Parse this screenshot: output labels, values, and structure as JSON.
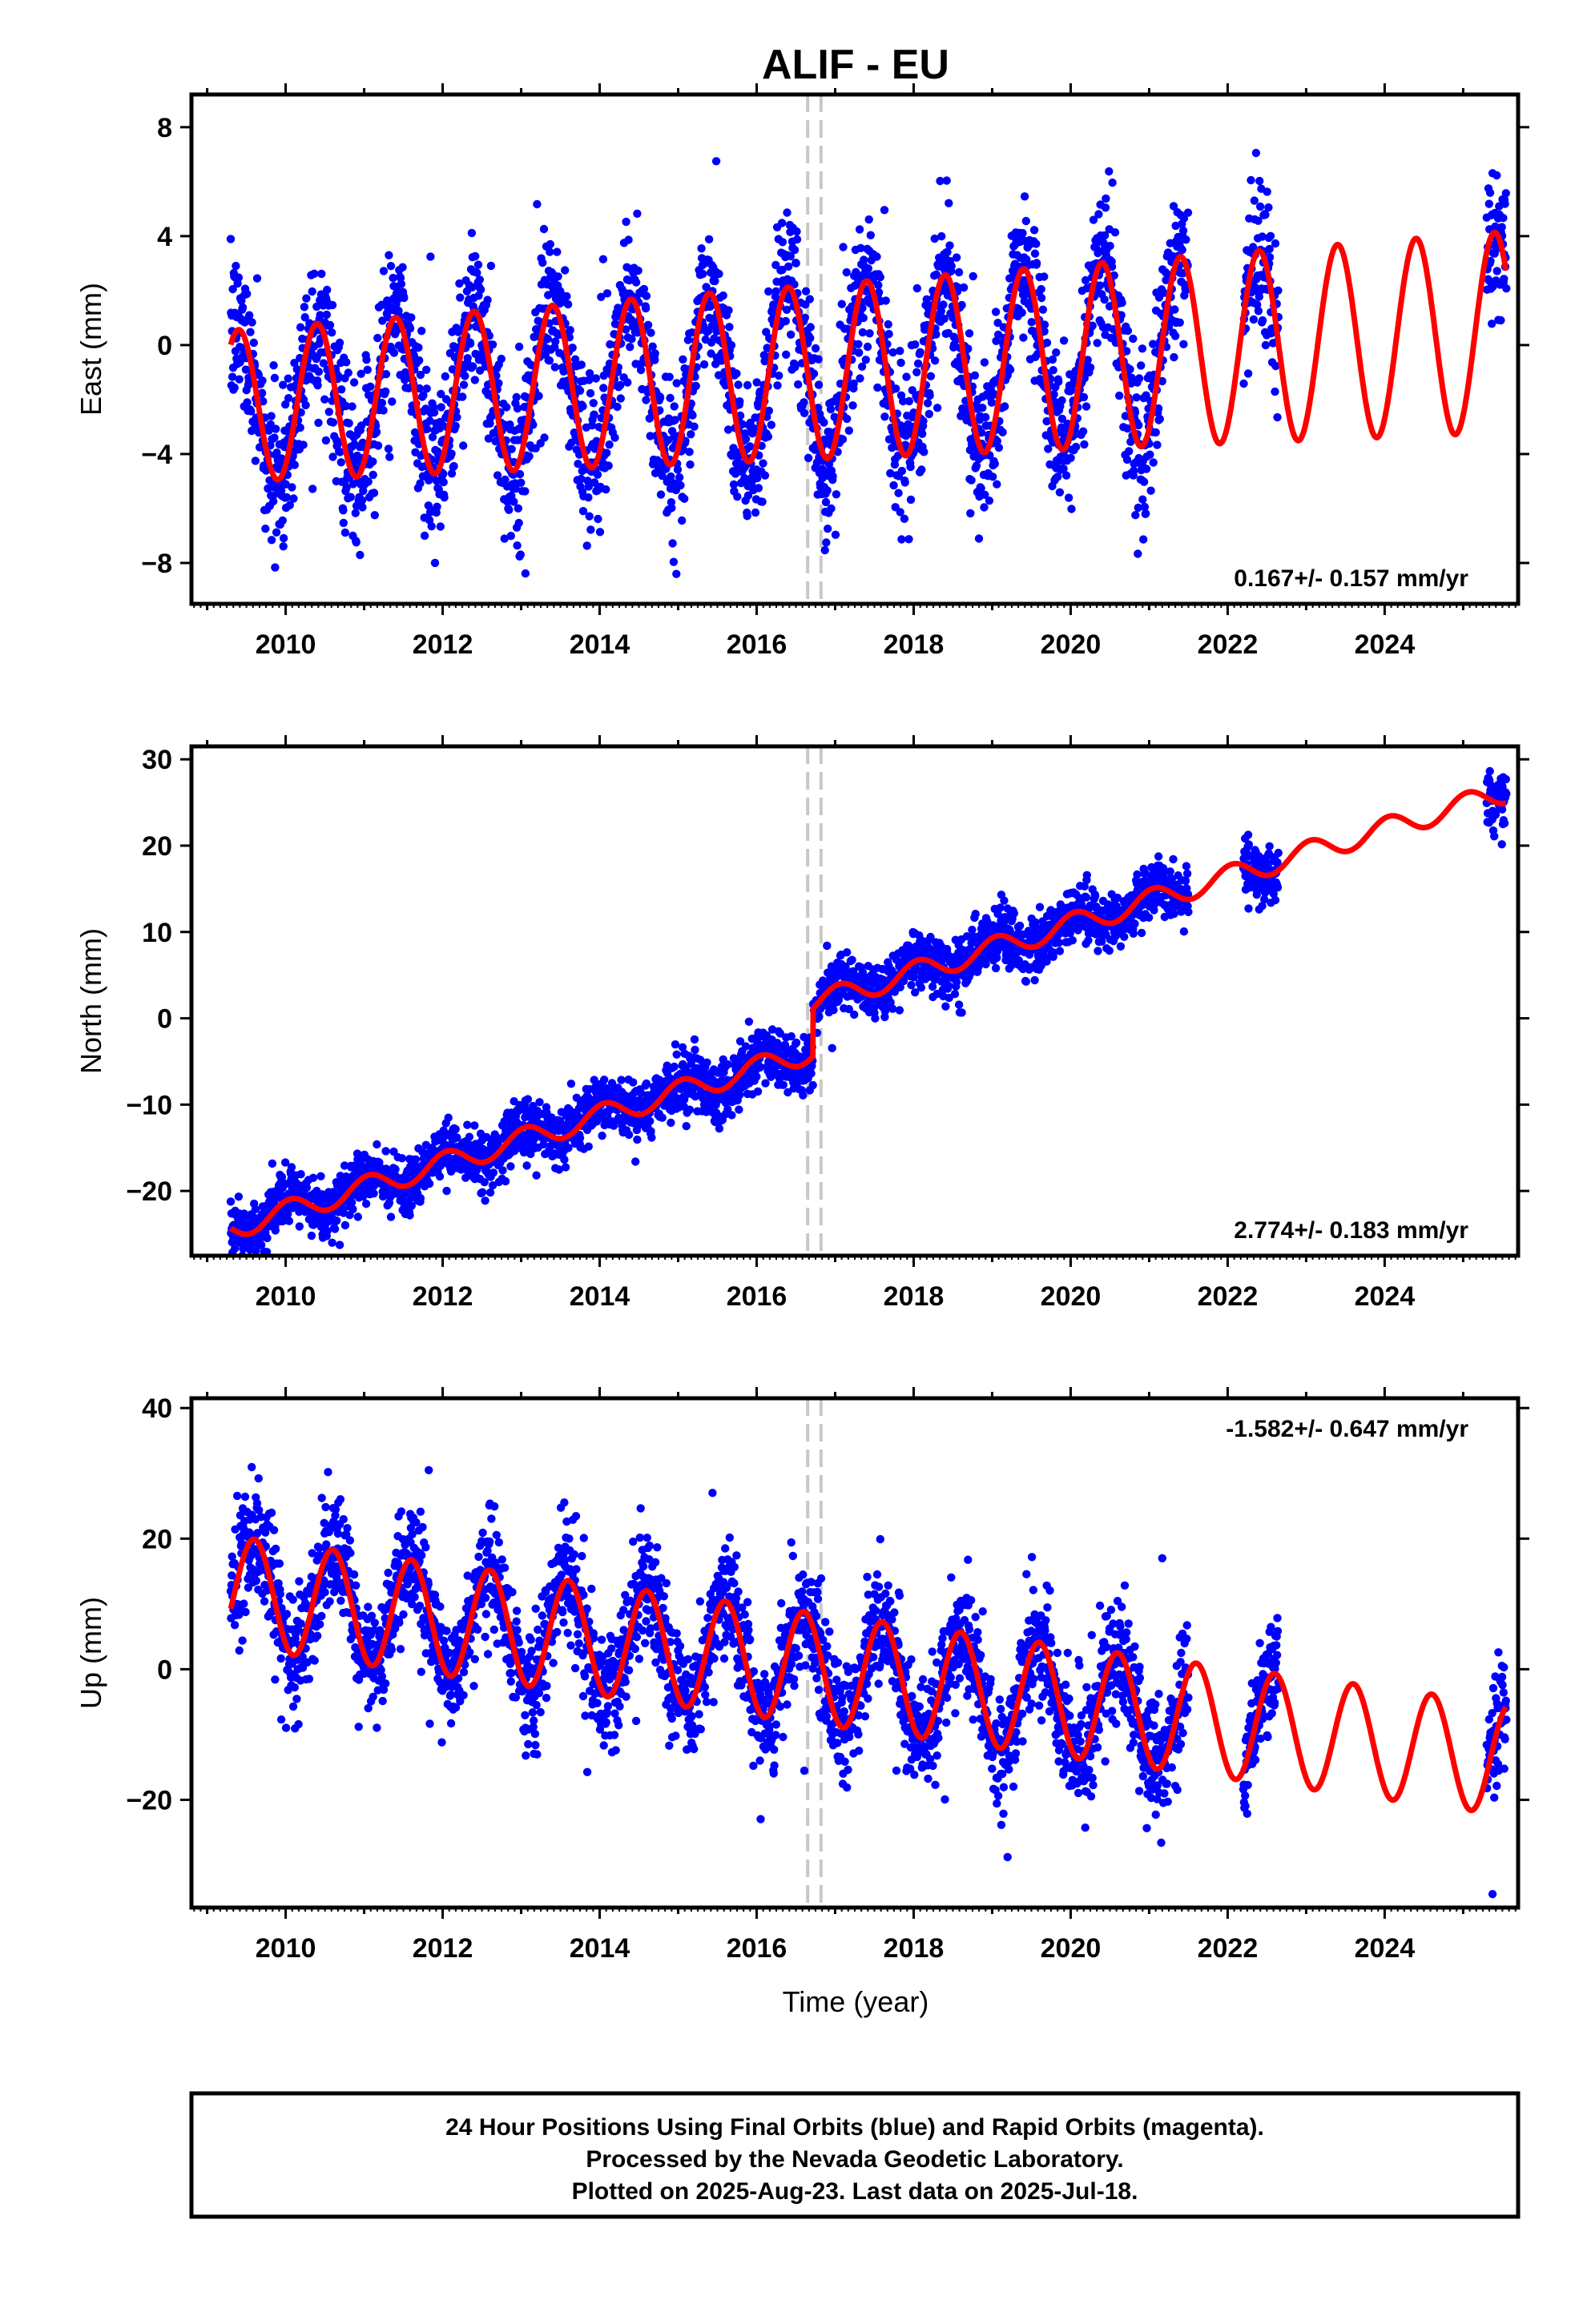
{
  "title": "ALIF - EU",
  "colors": {
    "points": "#0000ff",
    "fit": "#ff0000",
    "event_lines": "#c8c8c8",
    "frame": "#000000"
  },
  "footer": {
    "line1": "24 Hour Positions Using Final Orbits (blue) and Rapid Orbits (magenta).",
    "line2": "Processed by the Nevada Geodetic Laboratory.",
    "line3": "Plotted on 2025-Aug-23. Last data on 2025-Jul-18."
  },
  "chart_data": [
    {
      "type": "scatter",
      "component": "east",
      "ylabel": "East (mm)",
      "xlim": [
        2008.8,
        2025.7
      ],
      "ylim": [
        -9.5,
        9.2
      ],
      "x_ticks": [
        2010,
        2012,
        2014,
        2016,
        2018,
        2020,
        2022,
        2024
      ],
      "y_ticks": [
        -8,
        -4,
        0,
        4,
        8
      ],
      "rate_label": "0.167+/- 0.157 mm/yr",
      "rate_position": "bottom-right",
      "event_lines": [
        2016.65,
        2016.82
      ],
      "data_segments": [
        [
          2009.3,
          2021.5
        ],
        [
          2022.2,
          2022.65
        ],
        [
          2025.3,
          2025.55
        ]
      ],
      "fit": {
        "intercept": -0.95,
        "rate": 0.167,
        "t0": 2017.0,
        "annual_amplitude": [
          2.75,
          3.7
        ],
        "annual_phase_peak": 0.4
      },
      "scatter_sigma": 1.4
    },
    {
      "type": "scatter",
      "component": "north",
      "ylabel": "North (mm)",
      "xlim": [
        2008.8,
        2025.7
      ],
      "ylim": [
        -27.5,
        31.5
      ],
      "x_ticks": [
        2010,
        2012,
        2014,
        2016,
        2018,
        2020,
        2022,
        2024
      ],
      "y_ticks": [
        -20,
        -10,
        0,
        10,
        20,
        30
      ],
      "rate_label": "2.774+/- 0.183 mm/yr",
      "rate_position": "bottom-right",
      "event_lines": [
        2016.65,
        2016.82
      ],
      "offset": {
        "epoch": 2016.72,
        "size": 5.5
      },
      "data_segments": [
        [
          2009.3,
          2021.5
        ],
        [
          2022.2,
          2022.65
        ],
        [
          2025.3,
          2025.55
        ]
      ],
      "fit": {
        "intercept": -1.0,
        "rate": 2.774,
        "t0": 2016.72,
        "annual_amplitude": [
          1.3,
          1.3
        ],
        "annual_phase_peak": 0.05
      },
      "scatter_sigma": 1.6
    },
    {
      "type": "scatter",
      "component": "up",
      "ylabel": "Up (mm)",
      "xlim": [
        2008.8,
        2025.7
      ],
      "ylim": [
        -36.5,
        41.5
      ],
      "x_ticks": [
        2010,
        2012,
        2014,
        2016,
        2018,
        2020,
        2022,
        2024
      ],
      "y_ticks": [
        -20,
        0,
        20,
        40
      ],
      "rate_label": "-1.582+/- 0.647 mm/yr",
      "rate_position": "top-right",
      "event_lines": [
        2016.65,
        2016.82
      ],
      "data_segments": [
        [
          2009.3,
          2021.5
        ],
        [
          2022.2,
          2022.65
        ],
        [
          2025.3,
          2025.55
        ]
      ],
      "fit": {
        "intercept": -0.3,
        "rate": -1.582,
        "t0": 2017.0,
        "annual_amplitude": [
          8.5,
          8.5
        ],
        "annual_phase_peak": 0.6
      },
      "scatter_sigma": 4.5
    }
  ],
  "xlabel": "Time (year)"
}
